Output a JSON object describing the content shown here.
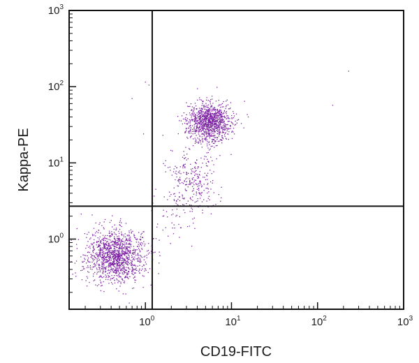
{
  "chart_data": {
    "type": "scatter",
    "xlabel": "CD19-FITC",
    "ylabel": "Kappa-PE",
    "x_scale": "log",
    "y_scale": "log",
    "xlim": [
      0.13,
      1000
    ],
    "ylim": [
      0.12,
      1000
    ],
    "x_major_ticks": [
      {
        "base": "10",
        "exp": "0",
        "value": 1
      },
      {
        "base": "10",
        "exp": "1",
        "value": 10
      },
      {
        "base": "10",
        "exp": "2",
        "value": 100
      },
      {
        "base": "10",
        "exp": "3",
        "value": 1000
      }
    ],
    "y_major_ticks": [
      {
        "base": "10",
        "exp": "0",
        "value": 1
      },
      {
        "base": "10",
        "exp": "1",
        "value": 10
      },
      {
        "base": "10",
        "exp": "2",
        "value": 100
      },
      {
        "base": "10",
        "exp": "3",
        "value": 1000
      }
    ],
    "gates": {
      "x": 1.2,
      "y": 2.7
    },
    "grid": false,
    "point_color": "#7b1fa2",
    "populations": [
      {
        "center": [
          0.45,
          0.6
        ],
        "count": 1300,
        "spread_log": [
          0.17,
          0.17
        ]
      },
      {
        "center": [
          5.5,
          35
        ],
        "count": 1100,
        "spread_log": [
          0.13,
          0.13
        ]
      },
      {
        "center": [
          3.5,
          6
        ],
        "count": 280,
        "spread_log": [
          0.14,
          0.22
        ]
      },
      {
        "center": [
          2.2,
          1.8
        ],
        "count": 40,
        "spread_log": [
          0.13,
          0.18
        ]
      }
    ],
    "outliers": [
      [
        230,
        160
      ],
      [
        150,
        57
      ],
      [
        1.0,
        115
      ],
      [
        1.1,
        105
      ],
      [
        0.7,
        70
      ],
      [
        0.95,
        24
      ]
    ]
  }
}
